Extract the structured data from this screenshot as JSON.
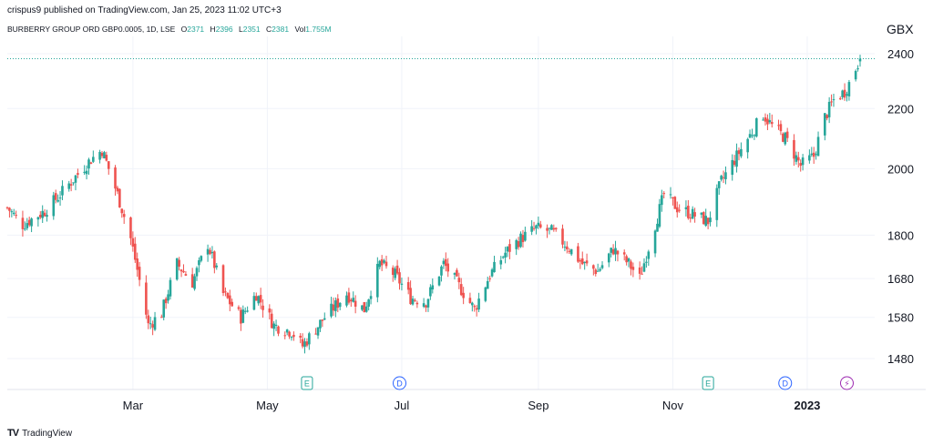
{
  "header": {
    "published": "crispus9 published on TradingView.com, Jan 25, 2023 11:02 UTC+3"
  },
  "legend": {
    "symbol": "BURBERRY GROUP ORD GBP0.0005, 1D, LSE",
    "open_label": "O",
    "open": "2371",
    "high_label": "H",
    "high": "2396",
    "low_label": "L",
    "low": "2351",
    "close_label": "C",
    "close": "2381",
    "vol_label": "Vol",
    "vol": "1.755M"
  },
  "currency": "GBX",
  "brand": {
    "name": "TradingView",
    "logo_text": "TV"
  },
  "colors": {
    "up": "#26a69a",
    "down": "#ef5350",
    "earnings": "#26a69a",
    "dividend": "#2962ff",
    "split": "#9c27b0",
    "grid": "#f0f3fa"
  },
  "chart_data": {
    "type": "candlestick",
    "title": "BURBERRY GROUP ORD GBP0.0005, 1D, LSE",
    "ylabel": "GBX",
    "y_scale": "log",
    "ylim": [
      1440,
      2480
    ],
    "y_ticks": [
      2400,
      2200,
      2000,
      1800,
      1680,
      1580,
      1480
    ],
    "last_price": 2381,
    "x_ticks": [
      {
        "label": "Mar",
        "date": "2022-03-01",
        "bold": false
      },
      {
        "label": "May",
        "date": "2022-05-01",
        "bold": false
      },
      {
        "label": "Jul",
        "date": "2022-07-01",
        "bold": false
      },
      {
        "label": "Sep",
        "date": "2022-09-01",
        "bold": false
      },
      {
        "label": "Nov",
        "date": "2022-11-01",
        "bold": false
      },
      {
        "label": "2023",
        "date": "2023-01-01",
        "bold": true
      }
    ],
    "events": [
      {
        "type": "earnings",
        "label": "E",
        "date": "2022-05-19"
      },
      {
        "type": "dividend",
        "label": "D",
        "date": "2022-06-30"
      },
      {
        "type": "earnings",
        "label": "E",
        "date": "2022-11-17"
      },
      {
        "type": "dividend",
        "label": "D",
        "date": "2022-12-22"
      },
      {
        "type": "split",
        "label": "⚡",
        "date": "2023-01-19"
      }
    ],
    "key_points": [
      [
        "2022-01-03",
        1880
      ],
      [
        "2022-01-10",
        1830
      ],
      [
        "2022-01-20",
        1870
      ],
      [
        "2022-01-27",
        1920
      ],
      [
        "2022-02-10",
        2030
      ],
      [
        "2022-02-15",
        2060
      ],
      [
        "2022-02-22",
        1920
      ],
      [
        "2022-02-28",
        1790
      ],
      [
        "2022-03-08",
        1560
      ],
      [
        "2022-03-14",
        1590
      ],
      [
        "2022-03-21",
        1720
      ],
      [
        "2022-03-28",
        1670
      ],
      [
        "2022-04-04",
        1775
      ],
      [
        "2022-04-11",
        1640
      ],
      [
        "2022-04-19",
        1580
      ],
      [
        "2022-04-26",
        1640
      ],
      [
        "2022-05-04",
        1560
      ],
      [
        "2022-05-12",
        1545
      ],
      [
        "2022-05-17",
        1510
      ],
      [
        "2022-05-27",
        1580
      ],
      [
        "2022-06-06",
        1640
      ],
      [
        "2022-06-14",
        1600
      ],
      [
        "2022-06-21",
        1720
      ],
      [
        "2022-06-28",
        1690
      ],
      [
        "2022-07-05",
        1630
      ],
      [
        "2022-07-12",
        1620
      ],
      [
        "2022-07-20",
        1720
      ],
      [
        "2022-07-27",
        1660
      ],
      [
        "2022-08-03",
        1600
      ],
      [
        "2022-08-10",
        1690
      ],
      [
        "2022-08-17",
        1750
      ],
      [
        "2022-08-24",
        1790
      ],
      [
        "2022-08-31",
        1820
      ],
      [
        "2022-09-07",
        1810
      ],
      [
        "2022-09-14",
        1770
      ],
      [
        "2022-09-21",
        1720
      ],
      [
        "2022-09-28",
        1700
      ],
      [
        "2022-10-05",
        1760
      ],
      [
        "2022-10-12",
        1720
      ],
      [
        "2022-10-17",
        1680
      ],
      [
        "2022-10-24",
        1830
      ],
      [
        "2022-10-28",
        1920
      ],
      [
        "2022-11-03",
        1880
      ],
      [
        "2022-11-10",
        1860
      ],
      [
        "2022-11-17",
        1840
      ],
      [
        "2022-11-23",
        1960
      ],
      [
        "2022-11-30",
        2040
      ],
      [
        "2022-12-07",
        2120
      ],
      [
        "2022-12-12",
        2180
      ],
      [
        "2022-12-16",
        2140
      ],
      [
        "2022-12-22",
        2100
      ],
      [
        "2022-12-29",
        2010
      ],
      [
        "2023-01-04",
        2040
      ],
      [
        "2023-01-09",
        2170
      ],
      [
        "2023-01-13",
        2230
      ],
      [
        "2023-01-18",
        2260
      ],
      [
        "2023-01-20",
        2290
      ],
      [
        "2023-01-25",
        2381
      ]
    ]
  }
}
